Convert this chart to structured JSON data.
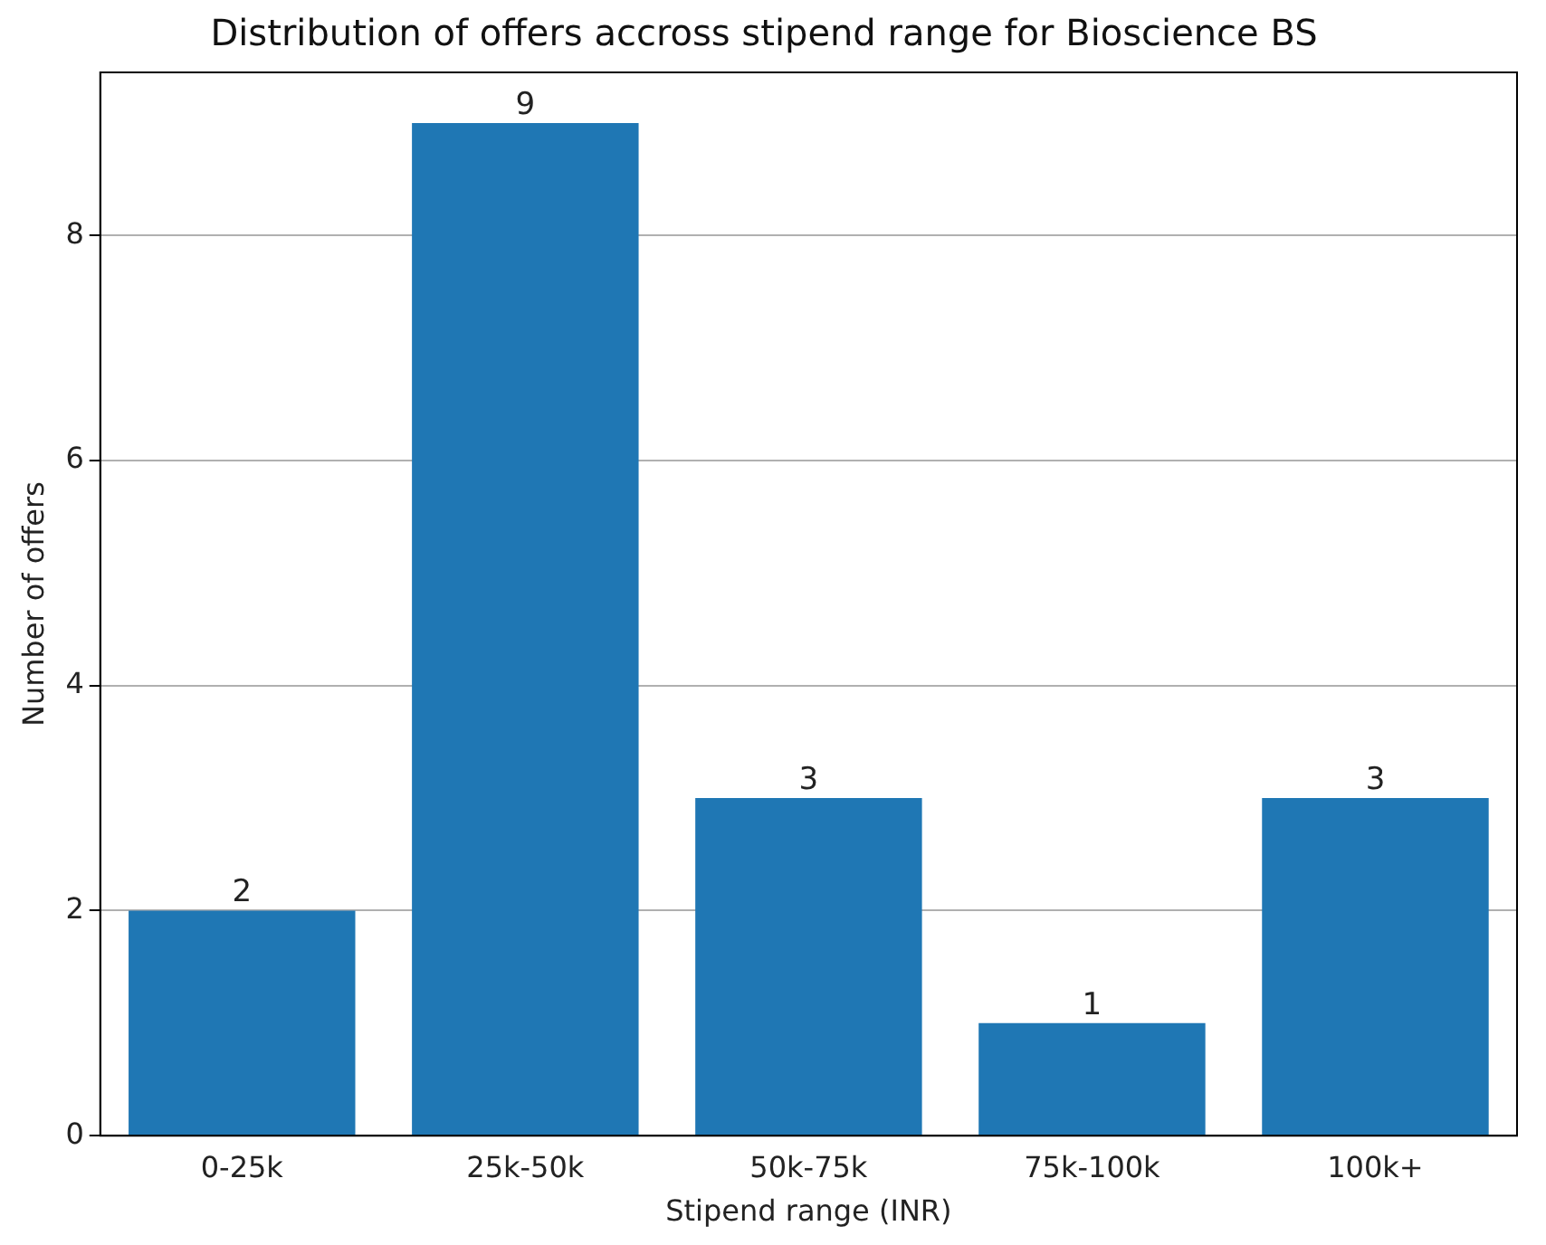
{
  "chart_data": {
    "type": "bar",
    "title": "Distribution of offers accross stipend range for Bioscience BS",
    "xlabel": "Stipend range (INR)",
    "ylabel": "Number of offers",
    "categories": [
      "0-25k",
      "25k-50k",
      "50k-75k",
      "75k-100k",
      "100k+"
    ],
    "values": [
      2,
      9,
      3,
      1,
      3
    ],
    "color": "#1f77b4",
    "ylim": [
      0,
      9.45
    ],
    "yticks": [
      0,
      2,
      4,
      6,
      8
    ],
    "grid": "y",
    "data_labels": true
  }
}
